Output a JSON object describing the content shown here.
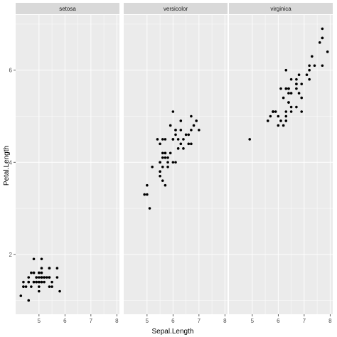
{
  "chart_data": {
    "type": "scatter",
    "xlabel": "Sepal.Length",
    "ylabel": "Petal.Length",
    "xlim": [
      4.1,
      8.1
    ],
    "ylim": [
      0.7,
      7.2
    ],
    "x_ticks": [
      5,
      6,
      7,
      8
    ],
    "y_ticks": [
      2,
      4,
      6
    ],
    "grid": true,
    "legend": "none",
    "point_color": "#000000",
    "panel_color": "#ebebeb",
    "strip_color": "#d9d9d9",
    "facets": [
      {
        "label": "setosa",
        "points": [
          [
            5.1,
            1.4
          ],
          [
            4.9,
            1.4
          ],
          [
            4.7,
            1.3
          ],
          [
            4.6,
            1.5
          ],
          [
            5.0,
            1.4
          ],
          [
            5.4,
            1.7
          ],
          [
            4.6,
            1.4
          ],
          [
            5.0,
            1.5
          ],
          [
            4.4,
            1.4
          ],
          [
            4.9,
            1.5
          ],
          [
            5.4,
            1.5
          ],
          [
            4.8,
            1.6
          ],
          [
            4.8,
            1.4
          ],
          [
            4.3,
            1.1
          ],
          [
            5.8,
            1.2
          ],
          [
            5.7,
            1.5
          ],
          [
            5.4,
            1.3
          ],
          [
            5.1,
            1.4
          ],
          [
            5.7,
            1.7
          ],
          [
            5.1,
            1.5
          ],
          [
            5.4,
            1.7
          ],
          [
            5.1,
            1.5
          ],
          [
            4.6,
            1.0
          ],
          [
            5.1,
            1.7
          ],
          [
            4.8,
            1.9
          ],
          [
            5.0,
            1.6
          ],
          [
            5.0,
            1.6
          ],
          [
            5.2,
            1.5
          ],
          [
            5.2,
            1.4
          ],
          [
            4.7,
            1.6
          ],
          [
            4.8,
            1.6
          ],
          [
            5.4,
            1.5
          ],
          [
            5.2,
            1.5
          ],
          [
            5.5,
            1.4
          ],
          [
            4.9,
            1.5
          ],
          [
            5.0,
            1.2
          ],
          [
            5.5,
            1.3
          ],
          [
            4.9,
            1.4
          ],
          [
            4.4,
            1.3
          ],
          [
            5.1,
            1.5
          ],
          [
            5.0,
            1.3
          ],
          [
            4.5,
            1.3
          ],
          [
            4.4,
            1.3
          ],
          [
            5.0,
            1.6
          ],
          [
            5.1,
            1.9
          ],
          [
            4.8,
            1.4
          ],
          [
            5.1,
            1.6
          ],
          [
            4.6,
            1.4
          ],
          [
            5.3,
            1.5
          ],
          [
            5.0,
            1.4
          ]
        ]
      },
      {
        "label": "versicolor",
        "points": [
          [
            7.0,
            4.7
          ],
          [
            6.4,
            4.5
          ],
          [
            6.9,
            4.9
          ],
          [
            5.5,
            4.0
          ],
          [
            6.5,
            4.6
          ],
          [
            5.7,
            4.5
          ],
          [
            6.3,
            4.7
          ],
          [
            4.9,
            3.3
          ],
          [
            6.6,
            4.6
          ],
          [
            5.2,
            3.9
          ],
          [
            5.0,
            3.5
          ],
          [
            5.9,
            4.2
          ],
          [
            6.0,
            4.0
          ],
          [
            6.1,
            4.7
          ],
          [
            5.6,
            3.6
          ],
          [
            6.7,
            4.4
          ],
          [
            5.6,
            4.5
          ],
          [
            5.8,
            4.1
          ],
          [
            6.2,
            4.5
          ],
          [
            5.6,
            3.9
          ],
          [
            5.9,
            4.8
          ],
          [
            6.1,
            4.0
          ],
          [
            6.3,
            4.9
          ],
          [
            6.1,
            4.7
          ],
          [
            6.4,
            4.3
          ],
          [
            6.6,
            4.4
          ],
          [
            6.8,
            4.8
          ],
          [
            6.7,
            5.0
          ],
          [
            6.0,
            4.5
          ],
          [
            5.7,
            3.5
          ],
          [
            5.5,
            3.8
          ],
          [
            5.5,
            3.7
          ],
          [
            5.8,
            3.9
          ],
          [
            6.0,
            5.1
          ],
          [
            5.4,
            4.5
          ],
          [
            6.0,
            4.5
          ],
          [
            6.7,
            4.7
          ],
          [
            6.3,
            4.4
          ],
          [
            5.6,
            4.1
          ],
          [
            5.5,
            4.0
          ],
          [
            5.5,
            4.4
          ],
          [
            6.1,
            4.6
          ],
          [
            5.8,
            4.0
          ],
          [
            5.0,
            3.3
          ],
          [
            5.6,
            4.2
          ],
          [
            5.7,
            4.2
          ],
          [
            5.7,
            4.2
          ],
          [
            6.2,
            4.3
          ],
          [
            5.1,
            3.0
          ],
          [
            5.7,
            4.1
          ]
        ]
      },
      {
        "label": "virginica",
        "points": [
          [
            6.3,
            6.0
          ],
          [
            5.8,
            5.1
          ],
          [
            7.1,
            5.9
          ],
          [
            6.3,
            5.6
          ],
          [
            6.5,
            5.8
          ],
          [
            7.6,
            6.6
          ],
          [
            4.9,
            4.5
          ],
          [
            7.3,
            6.3
          ],
          [
            6.7,
            5.8
          ],
          [
            7.2,
            6.1
          ],
          [
            6.5,
            5.1
          ],
          [
            6.4,
            5.3
          ],
          [
            6.8,
            5.5
          ],
          [
            5.7,
            5.0
          ],
          [
            5.8,
            5.1
          ],
          [
            6.4,
            5.3
          ],
          [
            6.5,
            5.5
          ],
          [
            7.7,
            6.7
          ],
          [
            7.7,
            6.9
          ],
          [
            6.0,
            5.0
          ],
          [
            6.9,
            5.7
          ],
          [
            5.6,
            4.9
          ],
          [
            7.7,
            6.7
          ],
          [
            6.3,
            4.9
          ],
          [
            6.7,
            5.7
          ],
          [
            7.2,
            6.0
          ],
          [
            6.2,
            4.8
          ],
          [
            6.1,
            4.9
          ],
          [
            6.4,
            5.6
          ],
          [
            7.2,
            5.8
          ],
          [
            7.4,
            6.1
          ],
          [
            7.9,
            6.4
          ],
          [
            6.4,
            5.6
          ],
          [
            6.3,
            5.1
          ],
          [
            6.1,
            5.6
          ],
          [
            7.7,
            6.1
          ],
          [
            6.3,
            5.6
          ],
          [
            6.4,
            5.5
          ],
          [
            6.0,
            4.8
          ],
          [
            6.9,
            5.4
          ],
          [
            6.7,
            5.6
          ],
          [
            6.9,
            5.1
          ],
          [
            5.8,
            5.1
          ],
          [
            6.8,
            5.9
          ],
          [
            6.7,
            5.7
          ],
          [
            6.7,
            5.2
          ],
          [
            6.3,
            5.0
          ],
          [
            6.5,
            5.2
          ],
          [
            6.2,
            5.4
          ],
          [
            5.9,
            5.1
          ]
        ]
      }
    ]
  }
}
